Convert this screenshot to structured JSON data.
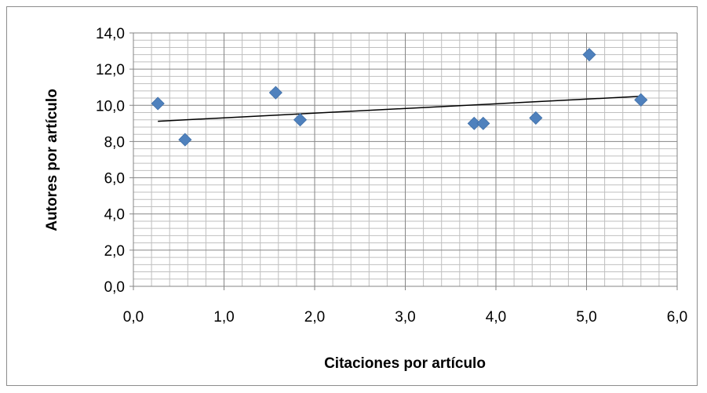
{
  "chart_data": {
    "type": "scatter",
    "title": "",
    "xlabel": "Citaciones por artículo",
    "ylabel": "Autores por artículo",
    "xlim": [
      0,
      6
    ],
    "ylim": [
      0,
      14
    ],
    "x_ticks": [
      "0,0",
      "1,0",
      "2,0",
      "3,0",
      "4,0",
      "5,0",
      "6,0"
    ],
    "y_ticks": [
      "0,0",
      "2,0",
      "4,0",
      "6,0",
      "8,0",
      "10,0",
      "12,0",
      "14,0"
    ],
    "grid": true,
    "legend": "none",
    "marker": "diamond",
    "marker_color": "#4f81bd",
    "series": [
      {
        "points": [
          {
            "x": 0.27,
            "y": 10.1
          },
          {
            "x": 0.57,
            "y": 8.1
          },
          {
            "x": 1.57,
            "y": 10.7
          },
          {
            "x": 1.84,
            "y": 9.2
          },
          {
            "x": 3.76,
            "y": 9.0
          },
          {
            "x": 3.86,
            "y": 9.0
          },
          {
            "x": 4.44,
            "y": 9.3
          },
          {
            "x": 5.03,
            "y": 12.8
          },
          {
            "x": 5.6,
            "y": 10.3
          }
        ]
      }
    ],
    "trendline": {
      "type": "linear",
      "color": "#000000",
      "x": [
        0.27,
        5.6
      ],
      "y": [
        9.12,
        10.5
      ]
    }
  }
}
